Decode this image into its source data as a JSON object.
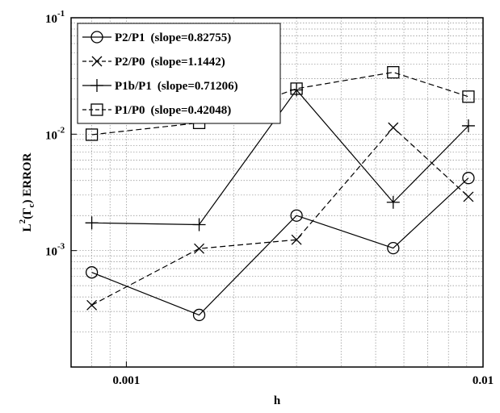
{
  "chart_data": {
    "type": "line",
    "x_scale": "log",
    "y_scale": "log",
    "xlim": [
      0.0007,
      0.01
    ],
    "ylim": [
      0.0001,
      0.1
    ],
    "grid": true,
    "legend_position": "top-left",
    "xlabel": "h",
    "ylabel": {
      "prefix": "L",
      "sup": "2",
      "open": "(Γ",
      "sub": "c",
      "close": ") ERROR"
    },
    "x_ticks": [
      {
        "value": 0.001,
        "label": "0.001"
      },
      {
        "value": 0.01,
        "label": "0.01"
      }
    ],
    "y_ticks": [
      {
        "value": 0.1,
        "base": "10",
        "exp": "-1"
      },
      {
        "value": 0.01,
        "base": "10",
        "exp": "-2"
      },
      {
        "value": 0.001,
        "base": "10",
        "exp": "-3"
      }
    ],
    "x": [
      0.0008,
      0.0016,
      0.003,
      0.0056,
      0.0091
    ],
    "series": [
      {
        "name": "P2/P1",
        "slope_label": "(slope=0.82755)",
        "marker": "circle",
        "dash": "solid",
        "values": [
          0.00065,
          0.00028,
          0.002,
          0.00105,
          0.0042
        ]
      },
      {
        "name": "P2/P0",
        "slope_label": "(slope=1.1442)",
        "marker": "x",
        "dash": "dashed",
        "values": [
          0.00034,
          0.00104,
          0.00124,
          0.0114,
          0.0029
        ]
      },
      {
        "name": "P1b/P1",
        "slope_label": "(slope=0.71206)",
        "marker": "plus",
        "dash": "solid",
        "values": [
          0.00173,
          0.00167,
          0.024,
          0.0026,
          0.0118
        ]
      },
      {
        "name": "P1/P0",
        "slope_label": "(slope=0.42048)",
        "marker": "square",
        "dash": "dashed",
        "values": [
          0.0099,
          0.0125,
          0.0246,
          0.034,
          0.021
        ]
      }
    ]
  }
}
